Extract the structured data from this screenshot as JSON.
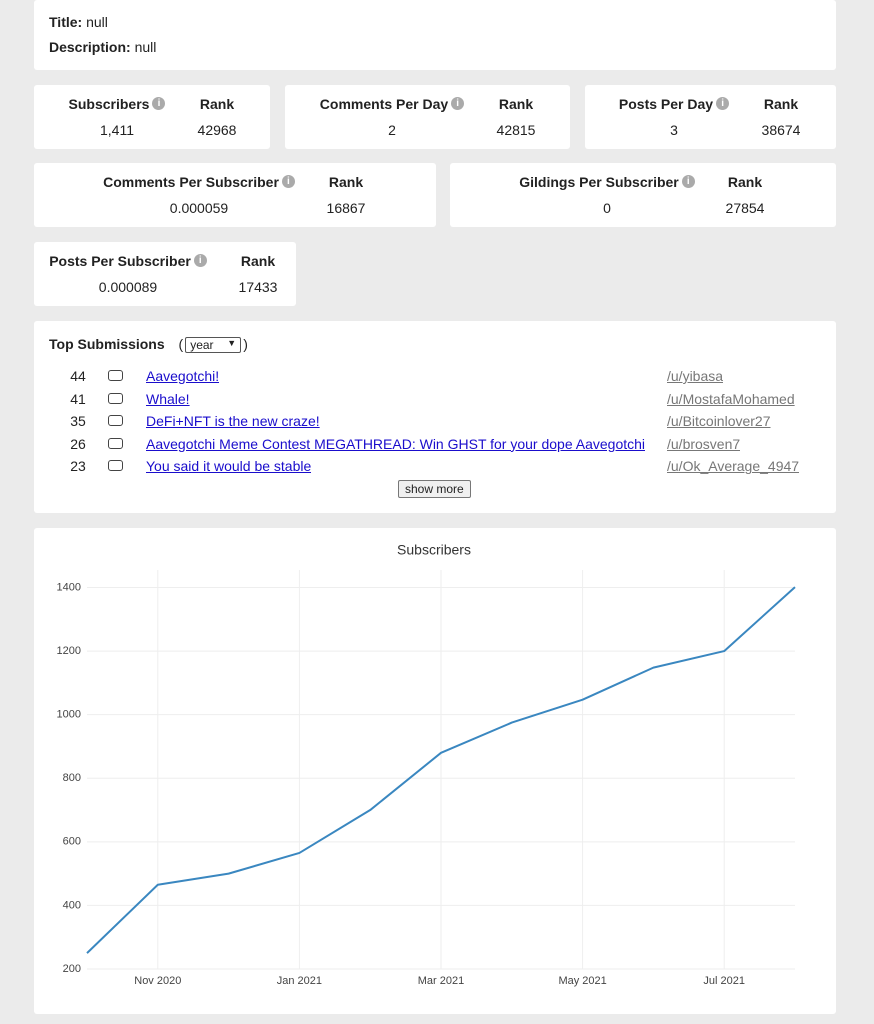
{
  "header": {
    "title_label": "Title:",
    "title": "null",
    "description_label": "Description:",
    "description": "null"
  },
  "stats": [
    {
      "label": "Subscribers",
      "value": "1,411",
      "rank_label": "Rank",
      "rank": "42968"
    },
    {
      "label": "Comments Per Day",
      "value": "2",
      "rank_label": "Rank",
      "rank": "42815"
    },
    {
      "label": "Posts Per Day",
      "value": "3",
      "rank_label": "Rank",
      "rank": "38674"
    },
    {
      "label": "Comments Per Subscriber",
      "value": "0.000059",
      "rank_label": "Rank",
      "rank": "16867"
    },
    {
      "label": "Gildings Per Subscriber",
      "value": "0",
      "rank_label": "Rank",
      "rank": "27854"
    },
    {
      "label": "Posts Per Subscriber",
      "value": "0.000089",
      "rank_label": "Rank",
      "rank": "17433"
    }
  ],
  "submissions": {
    "title": "Top Submissions",
    "period": "year",
    "rows": [
      {
        "score": "44",
        "title": "Aavegotchi!",
        "author": "/u/yibasa"
      },
      {
        "score": "41",
        "title": "Whale!",
        "author": "/u/MostafaMohamed"
      },
      {
        "score": "35",
        "title": "DeFi+NFT is the new craze!",
        "author": "/u/Bitcoinlover27"
      },
      {
        "score": "26",
        "title": "Aavegotchi Meme Contest MEGATHREAD: Win GHST for your dope Aavegotchi",
        "author": "/u/brosven7"
      },
      {
        "score": "23",
        "title": "You said it would be stable",
        "author": "/u/Ok_Average_4947"
      }
    ],
    "more": "show more"
  },
  "chart_data": {
    "type": "line",
    "title": "Subscribers",
    "x": [
      "2020-10",
      "2020-11",
      "2020-12",
      "2021-01",
      "2021-02",
      "2021-03",
      "2021-04",
      "2021-05",
      "2021-06",
      "2021-07",
      "2021-08"
    ],
    "series": [
      {
        "name": "Subscribers",
        "color": "#3a87c0",
        "values": [
          250,
          465,
          500,
          565,
          700,
          880,
          975,
          1047,
          1148,
          1200,
          1401
        ]
      }
    ],
    "xlim": [
      "2020-10",
      "2021-08"
    ],
    "xticks": [
      {
        "value": "2020-11",
        "label": "Nov 2020"
      },
      {
        "value": "2021-01",
        "label": "Jan 2021"
      },
      {
        "value": "2021-03",
        "label": "Mar 2021"
      },
      {
        "value": "2021-05",
        "label": "May 2021"
      },
      {
        "value": "2021-07",
        "label": "Jul 2021"
      }
    ],
    "ylim": [
      200,
      1455
    ],
    "yticks": [
      200,
      400,
      600,
      800,
      1000,
      1200,
      1400
    ],
    "grid": true
  }
}
